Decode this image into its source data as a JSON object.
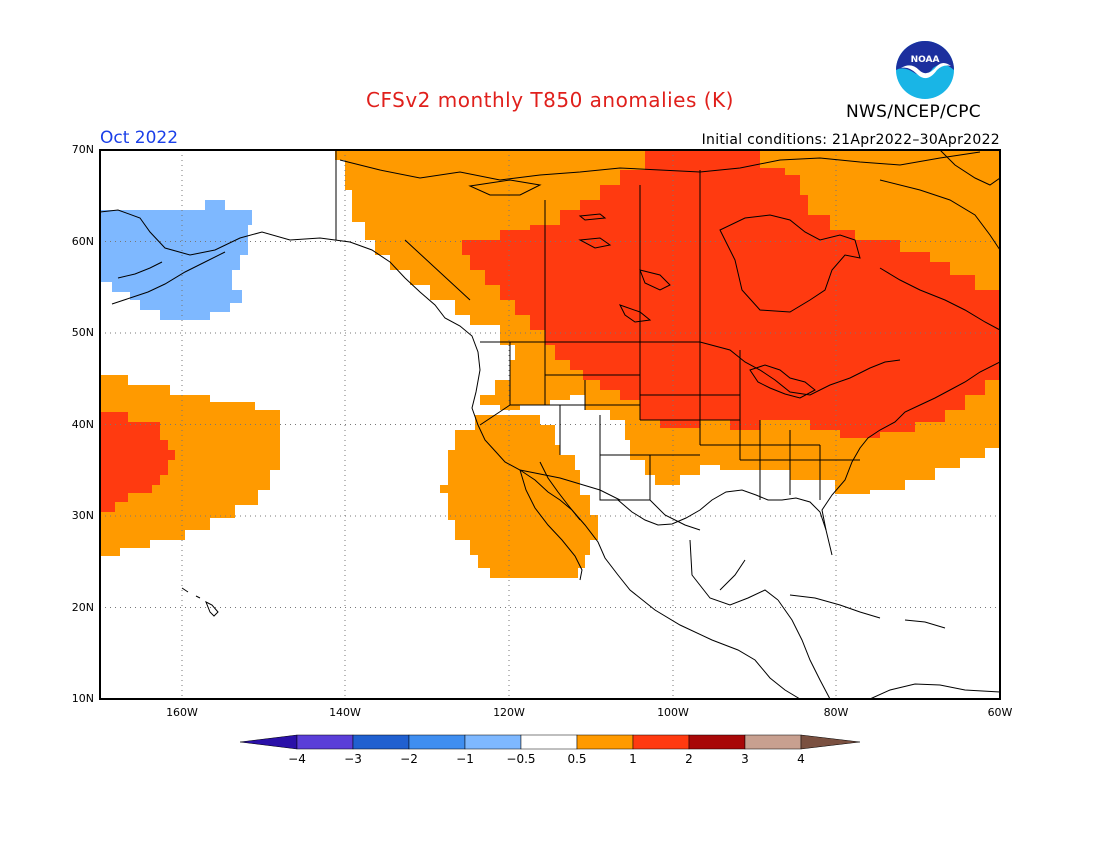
{
  "header": {
    "title": "CFSv2 monthly T850 anomalies (K)",
    "agency": "NWS/NCEP/CPC",
    "logo_text": "NOAA",
    "month": "Oct 2022",
    "initial_conditions": "Initial conditions: 21Apr2022–30Apr2022"
  },
  "map": {
    "projection": "cylindrical equidistant",
    "lon_range": [
      "170W",
      "60W"
    ],
    "lat_range": [
      "10N",
      "70N"
    ],
    "lat_labels": [
      "70N",
      "60N",
      "50N",
      "40N",
      "30N",
      "20N",
      "10N"
    ],
    "lon_labels": [
      "160W",
      "140W",
      "120W",
      "100W",
      "80W",
      "60W"
    ],
    "grid": "dotted",
    "anomaly_regions": [
      {
        "name": "Canada / Northeast US",
        "category": "1 to 2",
        "color": "#ff3a10"
      },
      {
        "name": "Western Canada and northern US",
        "category": "0.5 to 1",
        "color": "#ff9a00"
      },
      {
        "name": "Southwest US and Baja",
        "category": "0.5 to 1",
        "color": "#ff9a00"
      },
      {
        "name": "Eastern Pacific near 37N 165W",
        "category": "1 to 2",
        "color": "#ff3a10"
      },
      {
        "name": "Gulf of Alaska / Bering region",
        "category": "-1 to -0.5",
        "color": "#7eb8ff"
      }
    ]
  },
  "colorbar": {
    "labels": [
      "−4",
      "−3",
      "−2",
      "−1",
      "−0.5",
      "0.5",
      "1",
      "2",
      "3",
      "4"
    ],
    "colors": [
      "#2a10a8",
      "#5a3ed8",
      "#2060d0",
      "#3f8ef0",
      "#7eb8ff",
      "#ffffff",
      "#ff9a00",
      "#ff3a10",
      "#a80808",
      "#c8a090",
      "#7a5040"
    ]
  }
}
